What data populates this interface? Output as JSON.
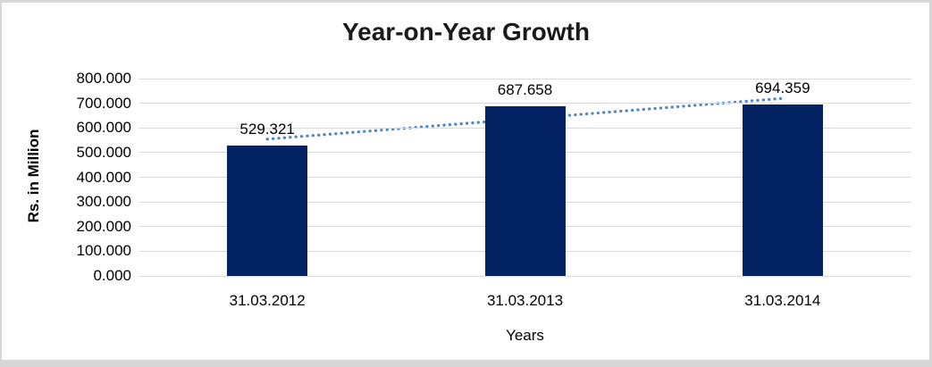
{
  "frame": {
    "background": "#ffffff",
    "border_color": "#d7d7d7"
  },
  "chart_data": {
    "type": "bar",
    "title": "Year-on-Year Growth",
    "xlabel": "Years",
    "ylabel": "Rs. in Million",
    "categories": [
      "31.03.2012",
      "31.03.2013",
      "31.03.2014"
    ],
    "values": [
      529.321,
      687.658,
      694.359
    ],
    "value_labels": [
      "529.321",
      "687.658",
      "694.359"
    ],
    "ylim": [
      0,
      800
    ],
    "ytick_step": 100,
    "ytick_labels": [
      "0.000",
      "100.000",
      "200.000",
      "300.000",
      "400.000",
      "500.000",
      "600.000",
      "700.000",
      "800.000"
    ],
    "grid": "horizontal",
    "legend": "none",
    "bar_color": "#042363",
    "gridline_color": "#d9d9d9",
    "trendline": {
      "type": "linear",
      "style": "dotted",
      "color": "#4e87c7"
    }
  }
}
